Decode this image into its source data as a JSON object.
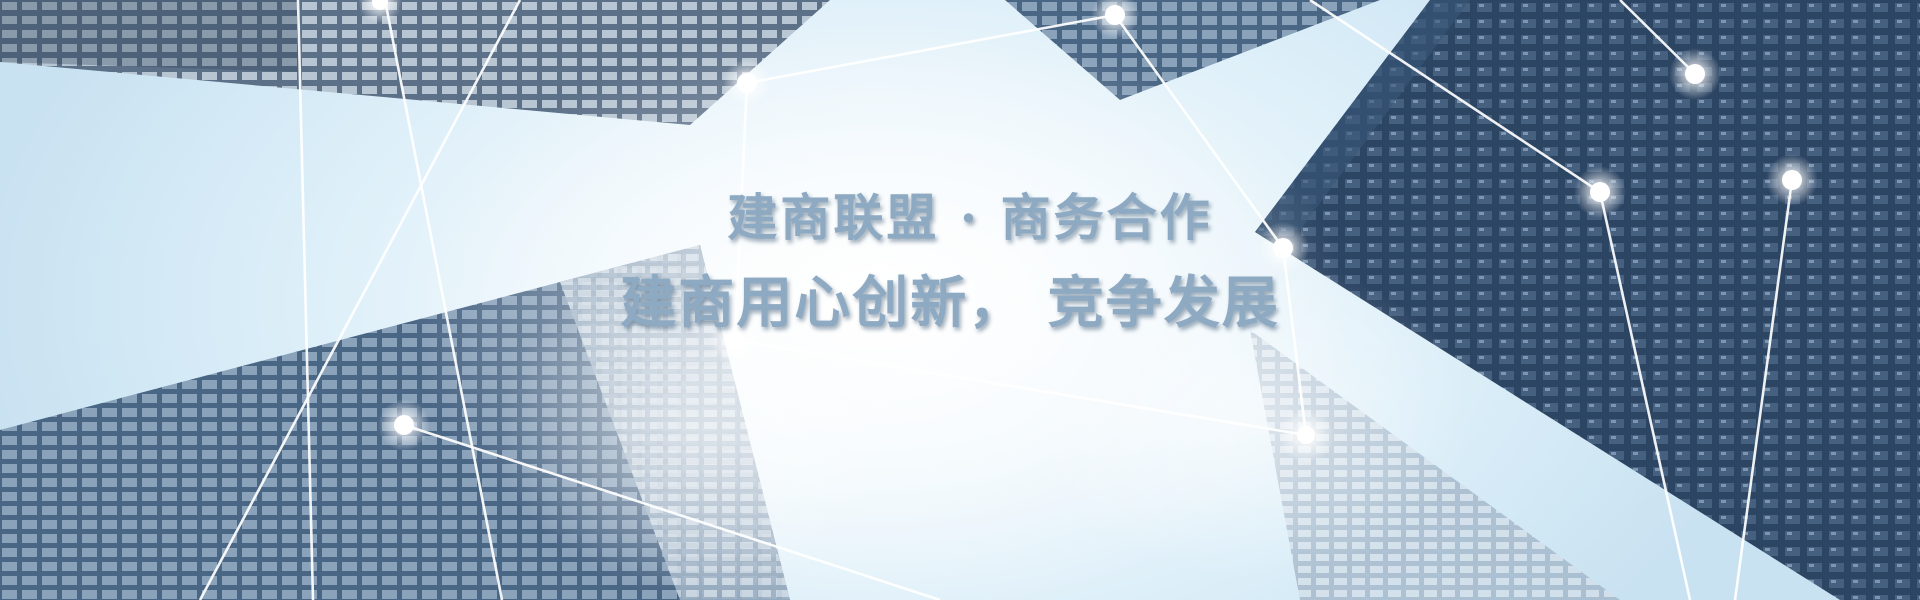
{
  "banner": {
    "line1": "建商联盟 · 商务合作",
    "line2": "建商用心创新， 竞争发展"
  },
  "colors": {
    "sky": "#dcefff",
    "building_dark": "#2e4766",
    "building_mid": "#5f7c99",
    "building_light": "#a7bbcc",
    "slogan_text": "#8ea9c2"
  }
}
